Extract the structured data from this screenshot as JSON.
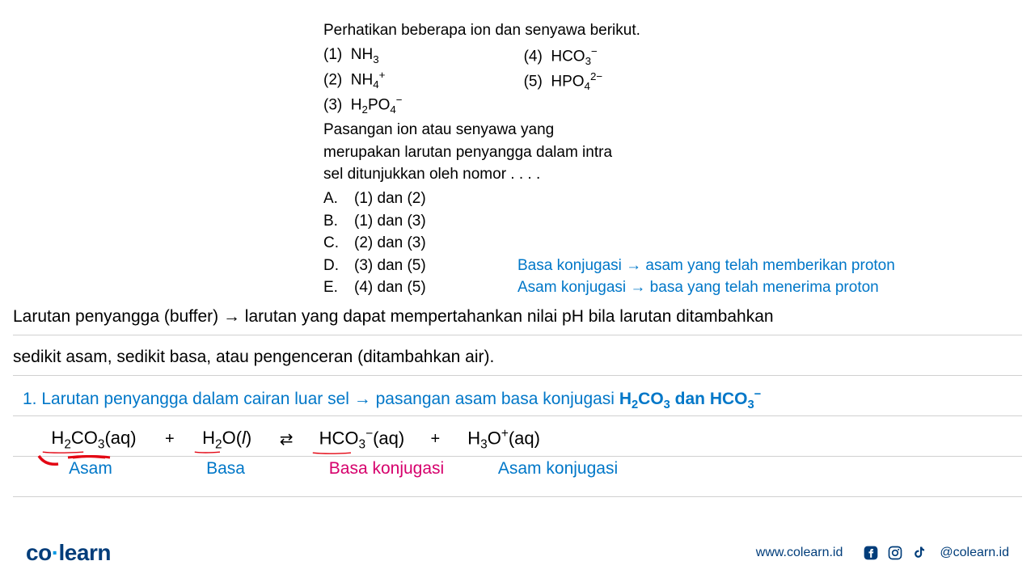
{
  "question": {
    "intro": "Perhatikan beberapa ion dan senyawa berikut.",
    "ions_col1": [
      {
        "num": "(1)",
        "formula": "NH<sub>3</sub>"
      },
      {
        "num": "(2)",
        "formula": "NH<sub>4</sub><sup>+</sup>"
      },
      {
        "num": "(3)",
        "formula": "H<sub>2</sub>PO<sub>4</sub><sup>−</sup>"
      }
    ],
    "ions_col2": [
      {
        "num": "(4)",
        "formula": "HCO<sub>3</sub><sup>−</sup>"
      },
      {
        "num": "(5)",
        "formula": "HPO<sub>4</sub><sup>2−</sup>"
      }
    ],
    "prompt_l1": "Pasangan ion atau senyawa yang",
    "prompt_l2": "merupakan larutan penyangga dalam intra",
    "prompt_l3": "sel ditunjukkan oleh nomor . . . .",
    "options": [
      {
        "label": "A.",
        "text": "(1) dan (2)"
      },
      {
        "label": "B.",
        "text": "(1) dan (3)"
      },
      {
        "label": "C.",
        "text": "(2) dan (3)"
      },
      {
        "label": "D.",
        "text": "(3) dan (5)"
      },
      {
        "label": "E.",
        "text": "(4) dan (5)"
      }
    ]
  },
  "notes": {
    "line1": "Basa konjugasi → asam yang telah memberikan proton",
    "line2": "Asam konjugasi → basa yang telah menerima proton"
  },
  "explain": {
    "line1": "Larutan penyangga (buffer) → larutan yang dapat mempertahankan nilai pH bila larutan ditambahkan",
    "line2": "sedikit asam, sedikit basa, atau pengenceran (ditambahkan air)."
  },
  "blue_section": {
    "prefix": "1. Larutan penyangga dalam cairan luar sel → pasangan asam basa konjugasi ",
    "bold": "H<sub>2</sub>CO<sub>3</sub> dan HCO<sub>3</sub><sup>−</sup>"
  },
  "equation": {
    "t1": "H<sub>2</sub>CO<sub>3</sub>(aq)",
    "op1": "+",
    "t2": "H<sub>2</sub>O(<i>l</i>)",
    "op2": "⇄",
    "t3": "HCO<sub>3</sub><sup>−</sup>(aq)",
    "op3": "+",
    "t4": "H<sub>3</sub>O<sup>+</sup>(aq)"
  },
  "labels": {
    "asam": "Asam",
    "basa": "Basa",
    "basa_konjugasi": "Basa konjugasi",
    "asam_konjugasi": "Asam konjugasi"
  },
  "colors": {
    "blue": "#0077c8",
    "red": "#e30613",
    "magenta": "#d6006c",
    "navy": "#003d7a",
    "hr": "#d0d0d0"
  },
  "footer": {
    "logo_co": "co",
    "logo_learn": "learn",
    "url": "www.colearn.id",
    "handle": "@colearn.id"
  }
}
